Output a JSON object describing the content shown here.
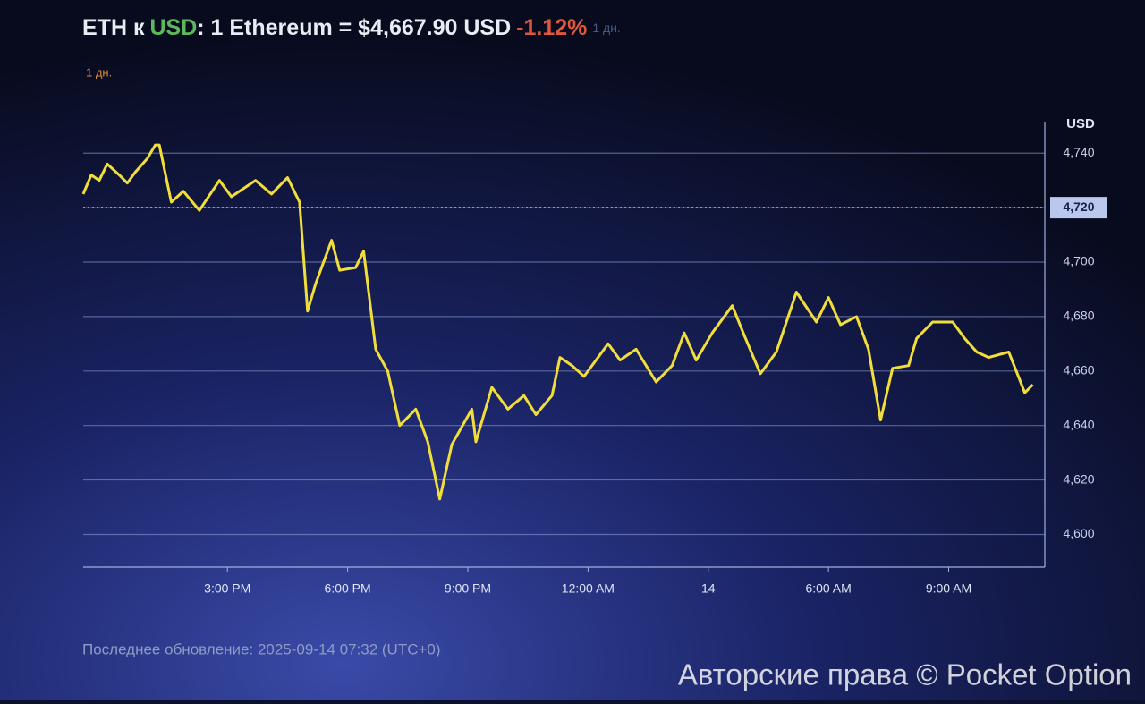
{
  "chart_data": {
    "type": "line",
    "title_parts": [
      "ETH к",
      "USD",
      ": 1 Ethereum = $4,667.90 USD",
      "-1.12%",
      "1 дн."
    ],
    "title_colors": [
      "#e8ecf4",
      "#5cb85c",
      "#e8ecf4",
      "#e0573e",
      "#4a5a8a"
    ],
    "subtitle": "1 дн.",
    "y_axis_label": "USD",
    "footer": "Последнее обновление: 2025-09-14 07:32 (UTC+0)",
    "watermark": "Авторские права © Pocket Option",
    "x": [
      11.4,
      11.6,
      11.8,
      12.0,
      12.3,
      12.5,
      12.7,
      13.0,
      13.2,
      13.3,
      13.6,
      13.9,
      14.3,
      14.8,
      15.1,
      15.7,
      16.1,
      16.5,
      16.8,
      17.0,
      17.2,
      17.6,
      17.8,
      18.2,
      18.4,
      18.7,
      19.0,
      19.3,
      19.7,
      20.0,
      20.3,
      20.6,
      21.1,
      21.2,
      21.6,
      22.0,
      22.4,
      22.7,
      23.1,
      23.3,
      23.6,
      23.9,
      24.2,
      24.5,
      24.8,
      25.2,
      25.7,
      26.1,
      26.4,
      26.7,
      27.1,
      27.6,
      27.9,
      28.3,
      28.7,
      29.2,
      29.7,
      30.0,
      30.3,
      30.7,
      31.0,
      31.3,
      31.6,
      32.0,
      32.2,
      32.6,
      33.1,
      33.4,
      33.7,
      34.0,
      34.5,
      34.9,
      35.1
    ],
    "series": [
      {
        "name": "ETH/USD",
        "color": "#f2de3a",
        "values": [
          4725,
          4732,
          4730,
          4736,
          4732,
          4729,
          4733,
          4738,
          4743,
          4743,
          4722,
          4726,
          4719,
          4730,
          4724,
          4730,
          4725,
          4731,
          4722,
          4682,
          4692,
          4708,
          4697,
          4698,
          4704,
          4668,
          4660,
          4640,
          4646,
          4634,
          4613,
          4633,
          4646,
          4634,
          4654,
          4646,
          4651,
          4644,
          4651,
          4665,
          4662,
          4658,
          4664,
          4670,
          4664,
          4668,
          4656,
          4662,
          4674,
          4664,
          4674,
          4684,
          4673,
          4659,
          4667,
          4689,
          4678,
          4687,
          4677,
          4680,
          4668,
          4642,
          4661,
          4662,
          4672,
          4678,
          4678,
          4672,
          4667,
          4665,
          4667,
          4652,
          4655
        ]
      }
    ],
    "xlim": [
      11.4,
      35.4
    ],
    "xticks": [
      {
        "value": 15,
        "label": "3:00 PM"
      },
      {
        "value": 18,
        "label": "6:00 PM"
      },
      {
        "value": 21,
        "label": "9:00 PM"
      },
      {
        "value": 24,
        "label": "12:00 AM"
      },
      {
        "value": 27,
        "label": "14"
      },
      {
        "value": 30,
        "label": "6:00 AM"
      },
      {
        "value": 33,
        "label": "9:00 AM"
      }
    ],
    "ylim": [
      4588,
      4745
    ],
    "yticks": [
      {
        "value": 4600,
        "label": "4,600"
      },
      {
        "value": 4620,
        "label": "4,620"
      },
      {
        "value": 4640,
        "label": "4,640"
      },
      {
        "value": 4660,
        "label": "4,660"
      },
      {
        "value": 4680,
        "label": "4,680"
      },
      {
        "value": 4700,
        "label": "4,700"
      },
      {
        "value": 4720,
        "label": "4,720"
      },
      {
        "value": 4740,
        "label": "4,740"
      }
    ],
    "reference_line": 4720,
    "grid": true
  }
}
